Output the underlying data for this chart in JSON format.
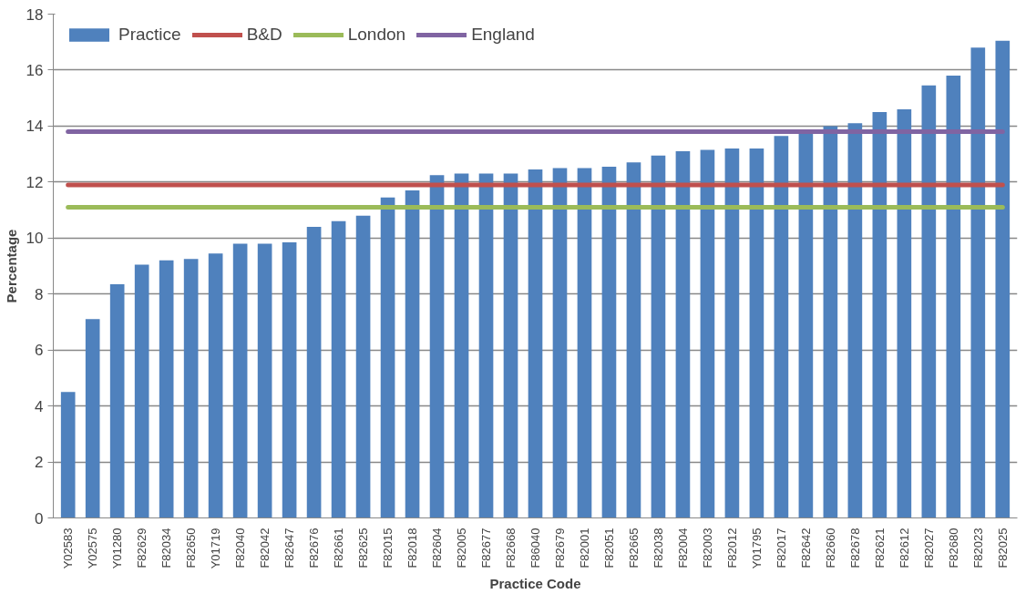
{
  "chart_data": {
    "type": "bar",
    "xlabel": "Practice Code",
    "ylabel": "Percentage",
    "categories": [
      "Y02583",
      "Y02575",
      "Y01280",
      "F82629",
      "F82034",
      "F82650",
      "Y01719",
      "F82040",
      "F82042",
      "F82647",
      "F82676",
      "F82661",
      "F82625",
      "F82015",
      "F82018",
      "F82604",
      "F82005",
      "F82677",
      "F82668",
      "F86040",
      "F82679",
      "F82001",
      "F82051",
      "F82665",
      "F82038",
      "F82004",
      "F82003",
      "F82012",
      "Y01795",
      "F82017",
      "F82642",
      "F82660",
      "F82678",
      "F82621",
      "F82612",
      "F82027",
      "F82680",
      "F82023",
      "F82025"
    ],
    "series": [
      {
        "name": "Practice",
        "color": "#4f81bd",
        "values": [
          4.5,
          7.1,
          8.35,
          9.05,
          9.2,
          9.25,
          9.45,
          9.8,
          9.8,
          9.85,
          10.4,
          10.6,
          10.8,
          11.45,
          11.7,
          12.25,
          12.3,
          12.3,
          12.3,
          12.45,
          12.5,
          12.5,
          12.55,
          12.7,
          12.95,
          13.1,
          13.15,
          13.2,
          13.2,
          13.65,
          13.8,
          14.0,
          14.1,
          14.5,
          14.6,
          15.45,
          15.8,
          16.8,
          17.05
        ]
      },
      {
        "name": "B&D",
        "type": "line",
        "color": "#c0504d",
        "values": [
          11.9,
          11.9,
          11.9,
          11.9,
          11.9,
          11.9,
          11.9,
          11.9,
          11.9,
          11.9,
          11.9,
          11.9,
          11.9,
          11.9,
          11.9,
          11.9,
          11.9,
          11.9,
          11.9,
          11.9,
          11.9,
          11.9,
          11.9,
          11.9,
          11.9,
          11.9,
          11.9,
          11.9,
          11.9,
          11.9,
          11.9,
          11.9,
          11.9,
          11.9,
          11.9,
          11.9,
          11.9,
          11.9,
          11.9
        ]
      },
      {
        "name": "London",
        "type": "line",
        "color": "#9bbb59",
        "values": [
          11.1,
          11.1,
          11.1,
          11.1,
          11.1,
          11.1,
          11.1,
          11.1,
          11.1,
          11.1,
          11.1,
          11.1,
          11.1,
          11.1,
          11.1,
          11.1,
          11.1,
          11.1,
          11.1,
          11.1,
          11.1,
          11.1,
          11.1,
          11.1,
          11.1,
          11.1,
          11.1,
          11.1,
          11.1,
          11.1,
          11.1,
          11.1,
          11.1,
          11.1,
          11.1,
          11.1,
          11.1,
          11.1,
          11.1
        ]
      },
      {
        "name": "England",
        "type": "line",
        "color": "#8064a2",
        "values": [
          13.8,
          13.8,
          13.8,
          13.8,
          13.8,
          13.8,
          13.8,
          13.8,
          13.8,
          13.8,
          13.8,
          13.8,
          13.8,
          13.8,
          13.8,
          13.8,
          13.8,
          13.8,
          13.8,
          13.8,
          13.8,
          13.8,
          13.8,
          13.8,
          13.8,
          13.8,
          13.8,
          13.8,
          13.8,
          13.8,
          13.8,
          13.8,
          13.8,
          13.8,
          13.8,
          13.8,
          13.8,
          13.8,
          13.8
        ]
      }
    ],
    "ylim": [
      0,
      18
    ],
    "yticks": [
      0,
      2,
      4,
      6,
      8,
      10,
      12,
      14,
      16,
      18
    ],
    "grid": "y",
    "legend": "top left"
  }
}
